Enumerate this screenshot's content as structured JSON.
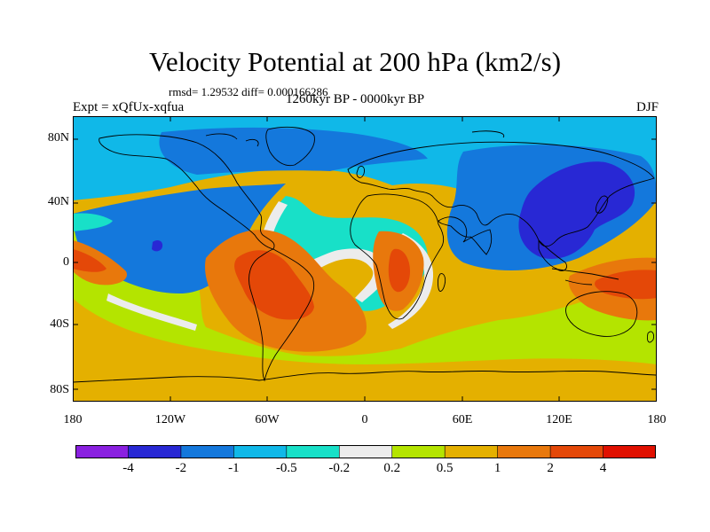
{
  "header": {
    "title": "Velocity Potential at 200 hPa (km2/s)",
    "stats": "rmsd= 1.29532 diff= 0.000166286",
    "period": "1260kyr BP - 0000kyr BP",
    "experiment": "Expt = xQfUx-xqfua",
    "season": "DJF"
  },
  "axes": {
    "lat_labels": [
      "80N",
      "40N",
      "0",
      "40S",
      "80S"
    ],
    "lon_labels": [
      "180",
      "120W",
      "60W",
      "0",
      "60E",
      "120E",
      "180"
    ]
  },
  "colorbar": {
    "colors": [
      "#8a20e0",
      "#2828d4",
      "#1478dc",
      "#10b8e8",
      "#18e0c8",
      "#ececec",
      "#b4e400",
      "#e4b000",
      "#e8780c",
      "#e44808",
      "#e01000"
    ],
    "labels": [
      "-4",
      "-2",
      "-1",
      "-0.5",
      "-0.2",
      "0.2",
      "0.5",
      "1",
      "2",
      "4"
    ]
  }
}
